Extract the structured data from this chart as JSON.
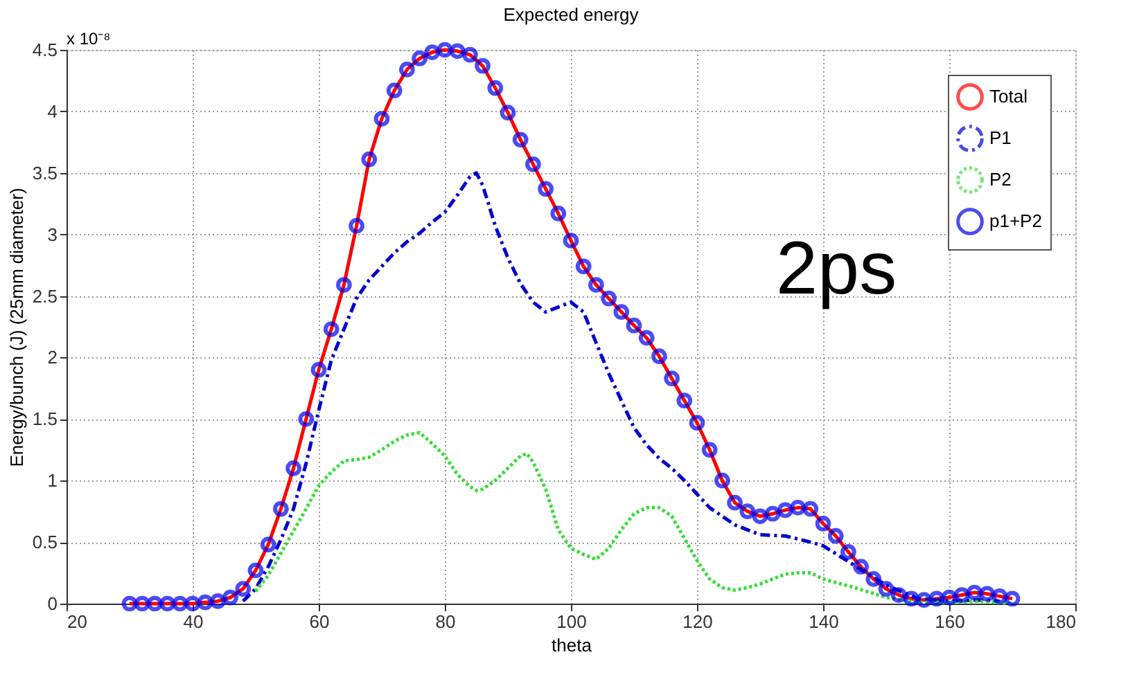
{
  "chart_data": {
    "type": "line",
    "title": "Expected energy",
    "xlabel": "theta",
    "ylabel": "Energy/bunch (J) (25mm diameter)",
    "annotations": [
      "x 10⁻⁸",
      "2ps"
    ],
    "xlim": [
      20,
      180
    ],
    "xticks": [
      20,
      40,
      60,
      80,
      100,
      120,
      140,
      160,
      180
    ],
    "ylim": [
      0,
      4.5
    ],
    "yticks": [
      {
        "value": 0,
        "label": "0"
      },
      0.5,
      {
        "value": 1,
        "label": "1"
      },
      1.5,
      {
        "value": 2,
        "label": "2"
      },
      2.5,
      {
        "value": 3,
        "label": "3"
      },
      3.5,
      {
        "value": 4,
        "label": "4"
      },
      4.5
    ],
    "grid": true,
    "legend": "top right",
    "series": [
      {
        "name": "Total",
        "color": "#ff0000",
        "line_style": "solid",
        "x": [
          30,
          32,
          34,
          36,
          38,
          40,
          42,
          44,
          46,
          48,
          50,
          52,
          54,
          56,
          58,
          60,
          62,
          64,
          66,
          68,
          70,
          72,
          74,
          76,
          78,
          80,
          82,
          84,
          86,
          88,
          90,
          92,
          94,
          96,
          98,
          100,
          102,
          104,
          106,
          108,
          110,
          112,
          114,
          116,
          118,
          120,
          122,
          124,
          126,
          128,
          130,
          132,
          134,
          136,
          138,
          140,
          142,
          144,
          146,
          148,
          150,
          152,
          154,
          156,
          158,
          160,
          162,
          164,
          166,
          168,
          170
        ],
        "values": [
          0,
          0,
          0,
          0,
          0,
          0,
          0.01,
          0.02,
          0.05,
          0.12,
          0.27,
          0.48,
          0.77,
          1.1,
          1.5,
          1.9,
          2.23,
          2.59,
          3.07,
          3.61,
          3.94,
          4.17,
          4.34,
          4.43,
          4.48,
          4.5,
          4.49,
          4.46,
          4.37,
          4.19,
          3.99,
          3.77,
          3.57,
          3.37,
          3.17,
          2.95,
          2.74,
          2.59,
          2.48,
          2.37,
          2.26,
          2.16,
          2.01,
          1.83,
          1.65,
          1.47,
          1.25,
          1,
          0.82,
          0.75,
          0.71,
          0.73,
          0.76,
          0.78,
          0.77,
          0.65,
          0.55,
          0.42,
          0.3,
          0.2,
          0.12,
          0.07,
          0.04,
          0.03,
          0.04,
          0.05,
          0.07,
          0.09,
          0.08,
          0.06,
          0.04
        ]
      },
      {
        "name": "P1",
        "color": "#0000cc",
        "line_style": "dashed",
        "x": [
          48,
          50,
          52,
          54,
          56,
          58,
          60,
          62,
          64,
          66,
          68,
          70,
          72,
          74,
          76,
          78,
          80,
          82,
          84,
          85,
          86,
          88,
          90,
          92,
          94,
          96,
          98,
          100,
          102,
          104,
          106,
          108,
          110,
          112,
          114,
          116,
          118,
          120,
          122,
          124,
          126,
          128,
          130,
          134,
          138,
          140,
          145,
          150,
          155,
          160,
          165,
          168
        ],
        "values": [
          0.02,
          0.12,
          0.3,
          0.52,
          0.77,
          1.14,
          1.57,
          1.98,
          2.23,
          2.48,
          2.63,
          2.74,
          2.85,
          2.94,
          3.01,
          3.1,
          3.18,
          3.32,
          3.47,
          3.5,
          3.4,
          3.07,
          2.81,
          2.6,
          2.45,
          2.37,
          2.41,
          2.45,
          2.37,
          2.12,
          1.87,
          1.65,
          1.43,
          1.29,
          1.18,
          1.1,
          1,
          0.89,
          0.78,
          0.71,
          0.64,
          0.6,
          0.56,
          0.55,
          0.5,
          0.47,
          0.31,
          0.15,
          0.04,
          0.02,
          0.03,
          0.02
        ]
      },
      {
        "name": "P2",
        "color": "#33dd33",
        "line_style": "dotted",
        "x": [
          50,
          52,
          54,
          56,
          58,
          60,
          62,
          64,
          66,
          68,
          70,
          72,
          74,
          76,
          78,
          80,
          82,
          84,
          85,
          86,
          88,
          90,
          92,
          93,
          94,
          96,
          98,
          100,
          102,
          104,
          106,
          108,
          110,
          112,
          114,
          116,
          118,
          120,
          122,
          124,
          126,
          128,
          130,
          132,
          134,
          136,
          138,
          140,
          145,
          150,
          155,
          160,
          165,
          170
        ],
        "values": [
          0.1,
          0.23,
          0.41,
          0.59,
          0.77,
          0.96,
          1.07,
          1.16,
          1.17,
          1.19,
          1.25,
          1.32,
          1.37,
          1.39,
          1.3,
          1.2,
          1.05,
          0.95,
          0.92,
          0.93,
          1,
          1.1,
          1.2,
          1.22,
          1.15,
          0.93,
          0.6,
          0.45,
          0.4,
          0.36,
          0.45,
          0.6,
          0.73,
          0.78,
          0.78,
          0.71,
          0.53,
          0.35,
          0.2,
          0.13,
          0.11,
          0.13,
          0.16,
          0.2,
          0.24,
          0.25,
          0.25,
          0.2,
          0.13,
          0.05,
          0.01,
          0.01,
          0.02,
          0
        ]
      },
      {
        "name": "p1+P2",
        "type": "scatter",
        "color": "#0000ee",
        "marker": "circle",
        "x": [
          30,
          32,
          34,
          36,
          38,
          40,
          42,
          44,
          46,
          48,
          50,
          52,
          54,
          56,
          58,
          60,
          62,
          64,
          66,
          68,
          70,
          72,
          74,
          76,
          78,
          80,
          82,
          84,
          86,
          88,
          90,
          92,
          94,
          96,
          98,
          100,
          102,
          104,
          106,
          108,
          110,
          112,
          114,
          116,
          118,
          120,
          122,
          124,
          126,
          128,
          130,
          132,
          134,
          136,
          138,
          140,
          142,
          144,
          146,
          148,
          150,
          152,
          154,
          156,
          158,
          160,
          162,
          164,
          166,
          168,
          170
        ],
        "values": [
          0,
          0,
          0,
          0,
          0,
          0,
          0.01,
          0.02,
          0.05,
          0.12,
          0.27,
          0.48,
          0.77,
          1.1,
          1.5,
          1.9,
          2.23,
          2.59,
          3.07,
          3.61,
          3.94,
          4.17,
          4.34,
          4.43,
          4.48,
          4.5,
          4.49,
          4.46,
          4.37,
          4.19,
          3.99,
          3.77,
          3.57,
          3.37,
          3.17,
          2.95,
          2.74,
          2.59,
          2.48,
          2.37,
          2.26,
          2.16,
          2.01,
          1.83,
          1.65,
          1.47,
          1.25,
          1,
          0.82,
          0.75,
          0.71,
          0.73,
          0.76,
          0.78,
          0.77,
          0.65,
          0.55,
          0.42,
          0.3,
          0.2,
          0.12,
          0.07,
          0.04,
          0.03,
          0.04,
          0.05,
          0.07,
          0.09,
          0.08,
          0.06,
          0.04
        ]
      }
    ]
  }
}
